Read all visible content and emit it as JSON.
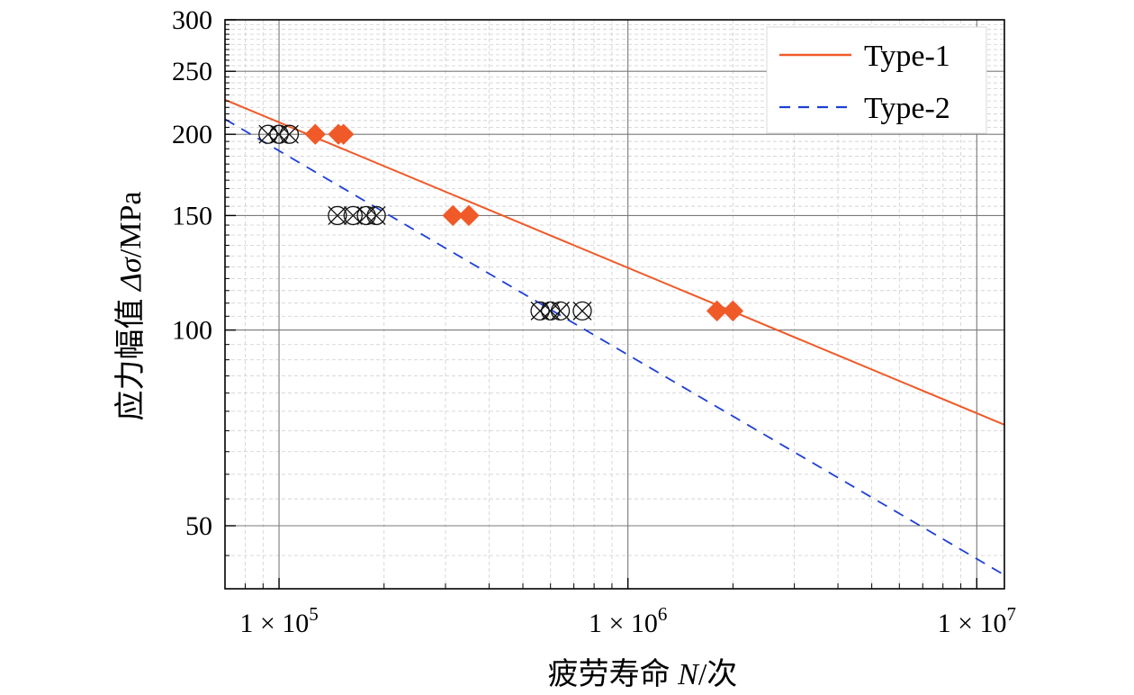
{
  "chart_data": {
    "type": "scatter",
    "xscale": "log",
    "yscale": "log",
    "xlim": [
      70000,
      12000000
    ],
    "ylim": [
      40,
      300
    ],
    "xlabel": {
      "prefix": "疲劳寿命 ",
      "var": "N",
      "suffix": "/次"
    },
    "ylabel": {
      "prefix": "应力幅值 ",
      "var": "Δσ",
      "suffix": "/MPa"
    },
    "x_ticks": [
      {
        "value": 100000,
        "mant": "1 × 10",
        "exp": "5"
      },
      {
        "value": 1000000,
        "mant": "1 × 10",
        "exp": "6"
      },
      {
        "value": 10000000,
        "mant": "1 × 10",
        "exp": "7"
      }
    ],
    "y_ticks": [
      {
        "value": 50,
        "label": "50"
      },
      {
        "value": 100,
        "label": "100"
      },
      {
        "value": 150,
        "label": "150"
      },
      {
        "value": 200,
        "label": "200"
      },
      {
        "value": 250,
        "label": "250"
      },
      {
        "value": 300,
        "label": "300"
      }
    ],
    "grid": true,
    "legend_position": "top-right",
    "series": [
      {
        "name": "Type-1",
        "color": "#f05a28",
        "line_style": "solid",
        "fit_line": [
          [
            70000,
            226
          ],
          [
            12000000,
            71.5
          ]
        ],
        "marker": "diamond",
        "points": [
          [
            127000,
            200
          ],
          [
            148000,
            200
          ],
          [
            153000,
            200
          ],
          [
            315000,
            150
          ],
          [
            350000,
            150
          ],
          [
            1800000,
            107
          ],
          [
            2000000,
            107
          ]
        ]
      },
      {
        "name": "Type-2",
        "color": "#1f3fd6",
        "line_style": "dashed",
        "fit_line": [
          [
            70000,
            211
          ],
          [
            12000000,
            42
          ]
        ],
        "marker": "crossed-circle",
        "points": [
          [
            93000,
            200
          ],
          [
            100000,
            200
          ],
          [
            107000,
            200
          ],
          [
            147000,
            150
          ],
          [
            163000,
            150
          ],
          [
            178000,
            150
          ],
          [
            190000,
            150
          ],
          [
            560000,
            107
          ],
          [
            600000,
            107
          ],
          [
            640000,
            107
          ],
          [
            740000,
            107
          ]
        ]
      }
    ]
  }
}
